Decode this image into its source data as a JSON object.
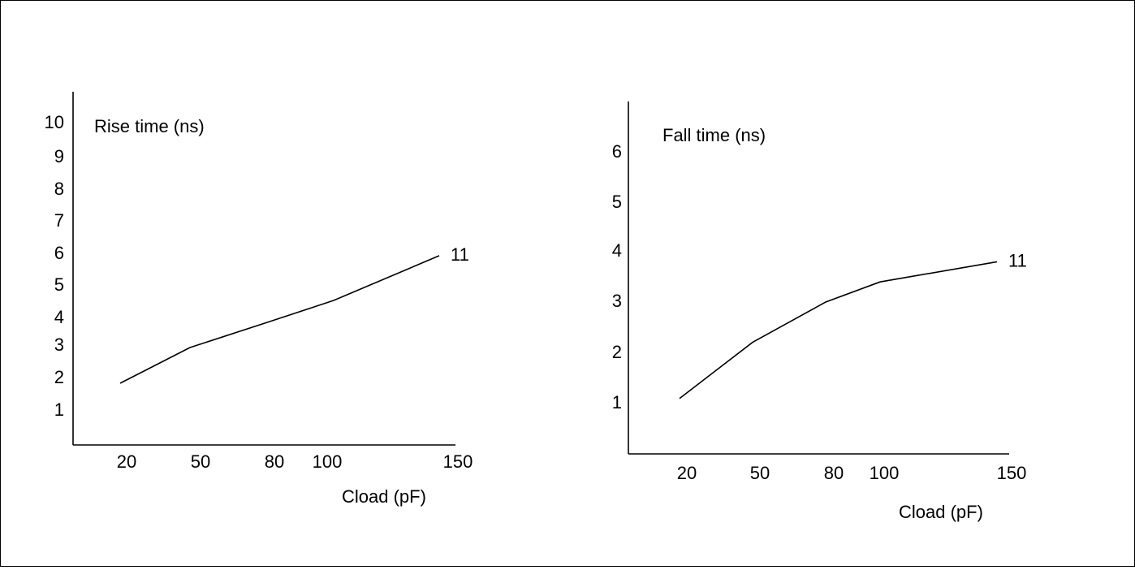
{
  "chart_data": [
    {
      "type": "line",
      "ylabel": "Rise time (ns)",
      "xlabel": "Cload (pF)",
      "x_ticks": [
        20,
        50,
        80,
        100,
        150
      ],
      "y_ticks": [
        1,
        2,
        3,
        4,
        5,
        6,
        7,
        8,
        9,
        10
      ],
      "x": [
        20,
        50,
        80,
        100,
        150
      ],
      "series": [
        {
          "values": [
            1.8,
            2.9,
            3.8,
            4.5,
            5.9
          ],
          "end_label": "11"
        }
      ],
      "grid": false
    },
    {
      "type": "line",
      "ylabel": "Fall time (ns)",
      "xlabel": "Cload (pF)",
      "x_ticks": [
        20,
        50,
        80,
        100,
        150
      ],
      "y_ticks": [
        1,
        2,
        3,
        4,
        5,
        6
      ],
      "x": [
        20,
        50,
        80,
        100,
        150
      ],
      "series": [
        {
          "values": [
            1.1,
            2.2,
            3.0,
            3.4,
            3.8
          ],
          "end_label": "11"
        }
      ],
      "grid": false
    }
  ]
}
